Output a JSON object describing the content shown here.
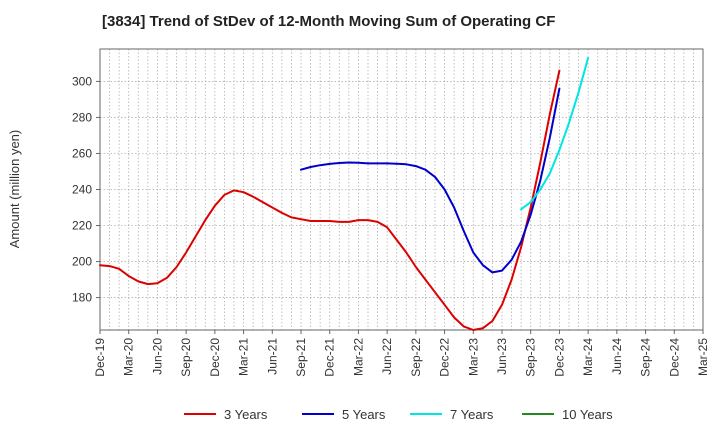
{
  "chart_data": {
    "type": "line",
    "title": "[3834]  Trend of StDev of 12-Month Moving Sum of Operating CF",
    "xlabel": "",
    "ylabel": "Amount (million yen)",
    "ylim": [
      162,
      318
    ],
    "y_ticks": [
      180,
      200,
      220,
      240,
      260,
      280,
      300
    ],
    "x_ticks": [
      "Dec-19",
      "Mar-20",
      "Jun-20",
      "Sep-20",
      "Dec-20",
      "Mar-21",
      "Jun-21",
      "Sep-21",
      "Dec-21",
      "Mar-22",
      "Jun-22",
      "Sep-22",
      "Dec-22",
      "Mar-23",
      "Jun-23",
      "Sep-23",
      "Dec-23",
      "Mar-24",
      "Jun-24",
      "Sep-24",
      "Dec-24",
      "Mar-25"
    ],
    "grid": true,
    "legend_position": "bottom",
    "series": [
      {
        "name": "3 Years",
        "color": "#dd0000",
        "start": "Dec-19",
        "values": [
          198,
          197.5,
          196,
          192,
          189,
          187.5,
          188,
          191,
          197,
          205,
          214,
          223,
          231,
          237,
          239.5,
          238.5,
          236,
          233,
          230,
          227,
          224.5,
          223.5,
          222.5,
          222.5,
          222.5,
          222,
          222,
          223,
          223,
          222,
          219,
          212,
          205,
          197,
          190,
          183,
          176,
          169,
          164,
          162,
          163,
          167,
          176,
          190,
          208,
          230,
          255,
          282,
          306
        ]
      },
      {
        "name": "5 Years",
        "color": "#0000cc",
        "start": "Sep-21",
        "values": [
          251,
          252.5,
          253.5,
          254.2,
          254.7,
          255,
          254.8,
          254.5,
          254.5,
          254.5,
          254.3,
          254,
          253,
          251,
          247,
          240,
          230,
          217,
          205,
          198,
          194,
          195,
          201,
          211,
          226,
          245,
          269,
          296
        ]
      },
      {
        "name": "7 Years",
        "color": "#00e5e5",
        "start": "Aug-23",
        "values": [
          229,
          233,
          240,
          249,
          262,
          277,
          294,
          313
        ]
      },
      {
        "name": "10 Years",
        "color": "#228822",
        "start": "",
        "values": []
      }
    ]
  }
}
